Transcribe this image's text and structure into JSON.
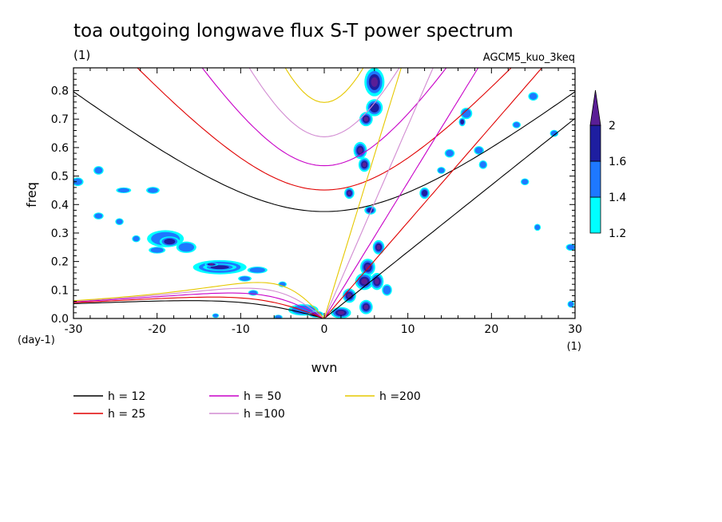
{
  "chart_data": {
    "type": "contour",
    "title": "toa outgoing longwave flux S-T power spectrum",
    "title_units": "(1)",
    "experiment": "AGCM5_kuo_3keq",
    "xlabel": "wvn",
    "xunits": "(1)",
    "ylabel": "freq",
    "yunits": "(day-1)",
    "xlim": [
      -30,
      30
    ],
    "ylim": [
      0,
      0.88
    ],
    "x_ticks": [
      -30,
      -20,
      -10,
      0,
      10,
      20,
      30
    ],
    "x_tick_labels": [
      "-30",
      "-20",
      "-10",
      "0",
      "10",
      "20",
      "30"
    ],
    "y_ticks": [
      0.0,
      0.1,
      0.2,
      0.3,
      0.4,
      0.5,
      0.6,
      0.7,
      0.8
    ],
    "y_tick_labels": [
      "0.0",
      "0.1",
      "0.2",
      "0.3",
      "0.4",
      "0.5",
      "0.6",
      "0.7",
      "0.8"
    ],
    "colorbar": {
      "levels": [
        1.2,
        1.4,
        1.6,
        2
      ],
      "level_labels": [
        "1.2",
        "1.4",
        "1.6",
        "2"
      ],
      "colors": [
        "#00ffff",
        "#1e78ff",
        "#1e1ea0",
        "#5a1e96"
      ]
    },
    "dispersion_curves": [
      {
        "name": "h = 12",
        "h": 12,
        "color": "#000000"
      },
      {
        "name": "h = 25",
        "h": 25,
        "color": "#e00000"
      },
      {
        "name": "h = 50",
        "h": 50,
        "color": "#c800c8"
      },
      {
        "name": "h =100",
        "h": 100,
        "color": "#d28cd2"
      },
      {
        "name": "h =200",
        "h": 200,
        "color": "#e6c800"
      }
    ],
    "spectral_blobs": [
      {
        "x": 6.0,
        "y": 0.83,
        "level": 3,
        "rx": 1.2,
        "ry": 0.05
      },
      {
        "x": 6.0,
        "y": 0.74,
        "level": 2,
        "rx": 1.0,
        "ry": 0.03
      },
      {
        "x": 5.0,
        "y": 0.7,
        "level": 3,
        "rx": 0.8,
        "ry": 0.025
      },
      {
        "x": 4.3,
        "y": 0.59,
        "level": 3,
        "rx": 0.8,
        "ry": 0.03
      },
      {
        "x": 4.8,
        "y": 0.54,
        "level": 3,
        "rx": 0.7,
        "ry": 0.025
      },
      {
        "x": 3.0,
        "y": 0.44,
        "level": 3,
        "rx": 0.6,
        "ry": 0.02
      },
      {
        "x": 5.5,
        "y": 0.38,
        "level": 2,
        "rx": 0.7,
        "ry": 0.015
      },
      {
        "x": 6.5,
        "y": 0.25,
        "level": 3,
        "rx": 0.7,
        "ry": 0.025
      },
      {
        "x": 5.2,
        "y": 0.18,
        "level": 3,
        "rx": 0.9,
        "ry": 0.03
      },
      {
        "x": 4.8,
        "y": 0.13,
        "level": 3,
        "rx": 1.1,
        "ry": 0.03
      },
      {
        "x": 6.3,
        "y": 0.13,
        "level": 3,
        "rx": 0.8,
        "ry": 0.03
      },
      {
        "x": 3.0,
        "y": 0.08,
        "level": 3,
        "rx": 0.8,
        "ry": 0.025
      },
      {
        "x": 5.0,
        "y": 0.04,
        "level": 3,
        "rx": 0.8,
        "ry": 0.025
      },
      {
        "x": 2.0,
        "y": 0.02,
        "level": 3,
        "rx": 1.2,
        "ry": 0.02
      },
      {
        "x": 7.5,
        "y": 0.1,
        "level": 1,
        "rx": 0.6,
        "ry": 0.02
      },
      {
        "x": 12.0,
        "y": 0.44,
        "level": 2,
        "rx": 0.6,
        "ry": 0.02
      },
      {
        "x": 17.0,
        "y": 0.72,
        "level": 1,
        "rx": 0.7,
        "ry": 0.02
      },
      {
        "x": 16.5,
        "y": 0.69,
        "level": 2,
        "rx": 0.4,
        "ry": 0.015
      },
      {
        "x": 18.5,
        "y": 0.59,
        "level": 1,
        "rx": 0.6,
        "ry": 0.015
      },
      {
        "x": 19.0,
        "y": 0.54,
        "level": 1,
        "rx": 0.5,
        "ry": 0.015
      },
      {
        "x": 15.0,
        "y": 0.58,
        "level": 1,
        "rx": 0.6,
        "ry": 0.015
      },
      {
        "x": 14.0,
        "y": 0.52,
        "level": 1,
        "rx": 0.5,
        "ry": 0.012
      },
      {
        "x": 25.0,
        "y": 0.78,
        "level": 1,
        "rx": 0.6,
        "ry": 0.015
      },
      {
        "x": 23.0,
        "y": 0.68,
        "level": 1,
        "rx": 0.5,
        "ry": 0.012
      },
      {
        "x": 27.5,
        "y": 0.65,
        "level": 1,
        "rx": 0.5,
        "ry": 0.012
      },
      {
        "x": 24.0,
        "y": 0.48,
        "level": 1,
        "rx": 0.5,
        "ry": 0.012
      },
      {
        "x": 25.5,
        "y": 0.32,
        "level": 1,
        "rx": 0.4,
        "ry": 0.012
      },
      {
        "x": 29.5,
        "y": 0.25,
        "level": 1,
        "rx": 0.6,
        "ry": 0.012
      },
      {
        "x": 29.5,
        "y": 0.05,
        "level": 1,
        "rx": 0.4,
        "ry": 0.012
      },
      {
        "x": -27.0,
        "y": 0.52,
        "level": 1,
        "rx": 0.6,
        "ry": 0.015
      },
      {
        "x": -29.5,
        "y": 0.48,
        "level": 1,
        "rx": 0.7,
        "ry": 0.015
      },
      {
        "x": -24.0,
        "y": 0.45,
        "level": 1,
        "rx": 0.9,
        "ry": 0.01
      },
      {
        "x": -20.5,
        "y": 0.45,
        "level": 1,
        "rx": 0.8,
        "ry": 0.012
      },
      {
        "x": -27.0,
        "y": 0.36,
        "level": 1,
        "rx": 0.6,
        "ry": 0.012
      },
      {
        "x": -24.5,
        "y": 0.34,
        "level": 1,
        "rx": 0.5,
        "ry": 0.012
      },
      {
        "x": -22.5,
        "y": 0.28,
        "level": 1,
        "rx": 0.5,
        "ry": 0.012
      },
      {
        "x": -19.0,
        "y": 0.28,
        "level": 1,
        "rx": 2.2,
        "ry": 0.03
      },
      {
        "x": -18.5,
        "y": 0.27,
        "level": 2,
        "rx": 1.2,
        "ry": 0.018
      },
      {
        "x": -16.5,
        "y": 0.25,
        "level": 1,
        "rx": 1.2,
        "ry": 0.02
      },
      {
        "x": -20.0,
        "y": 0.24,
        "level": 1,
        "rx": 1.0,
        "ry": 0.012
      },
      {
        "x": -12.5,
        "y": 0.18,
        "level": 1,
        "rx": 3.2,
        "ry": 0.025
      },
      {
        "x": -12.5,
        "y": 0.18,
        "level": 2,
        "rx": 2.0,
        "ry": 0.012
      },
      {
        "x": -13.5,
        "y": 0.19,
        "level": 3,
        "rx": 0.8,
        "ry": 0.007
      },
      {
        "x": -8.0,
        "y": 0.17,
        "level": 1,
        "rx": 1.2,
        "ry": 0.012
      },
      {
        "x": -9.5,
        "y": 0.14,
        "level": 1,
        "rx": 0.8,
        "ry": 0.01
      },
      {
        "x": -5.0,
        "y": 0.12,
        "level": 1,
        "rx": 0.5,
        "ry": 0.01
      },
      {
        "x": -8.5,
        "y": 0.09,
        "level": 1,
        "rx": 0.6,
        "ry": 0.01
      },
      {
        "x": -2.5,
        "y": 0.03,
        "level": 1,
        "rx": 1.8,
        "ry": 0.02
      },
      {
        "x": -1.0,
        "y": 0.015,
        "level": 2,
        "rx": 0.9,
        "ry": 0.012
      },
      {
        "x": -5.5,
        "y": 0.005,
        "level": 1,
        "rx": 0.5,
        "ry": 0.008
      },
      {
        "x": -13.0,
        "y": 0.01,
        "level": 1,
        "rx": 0.4,
        "ry": 0.008
      }
    ]
  }
}
